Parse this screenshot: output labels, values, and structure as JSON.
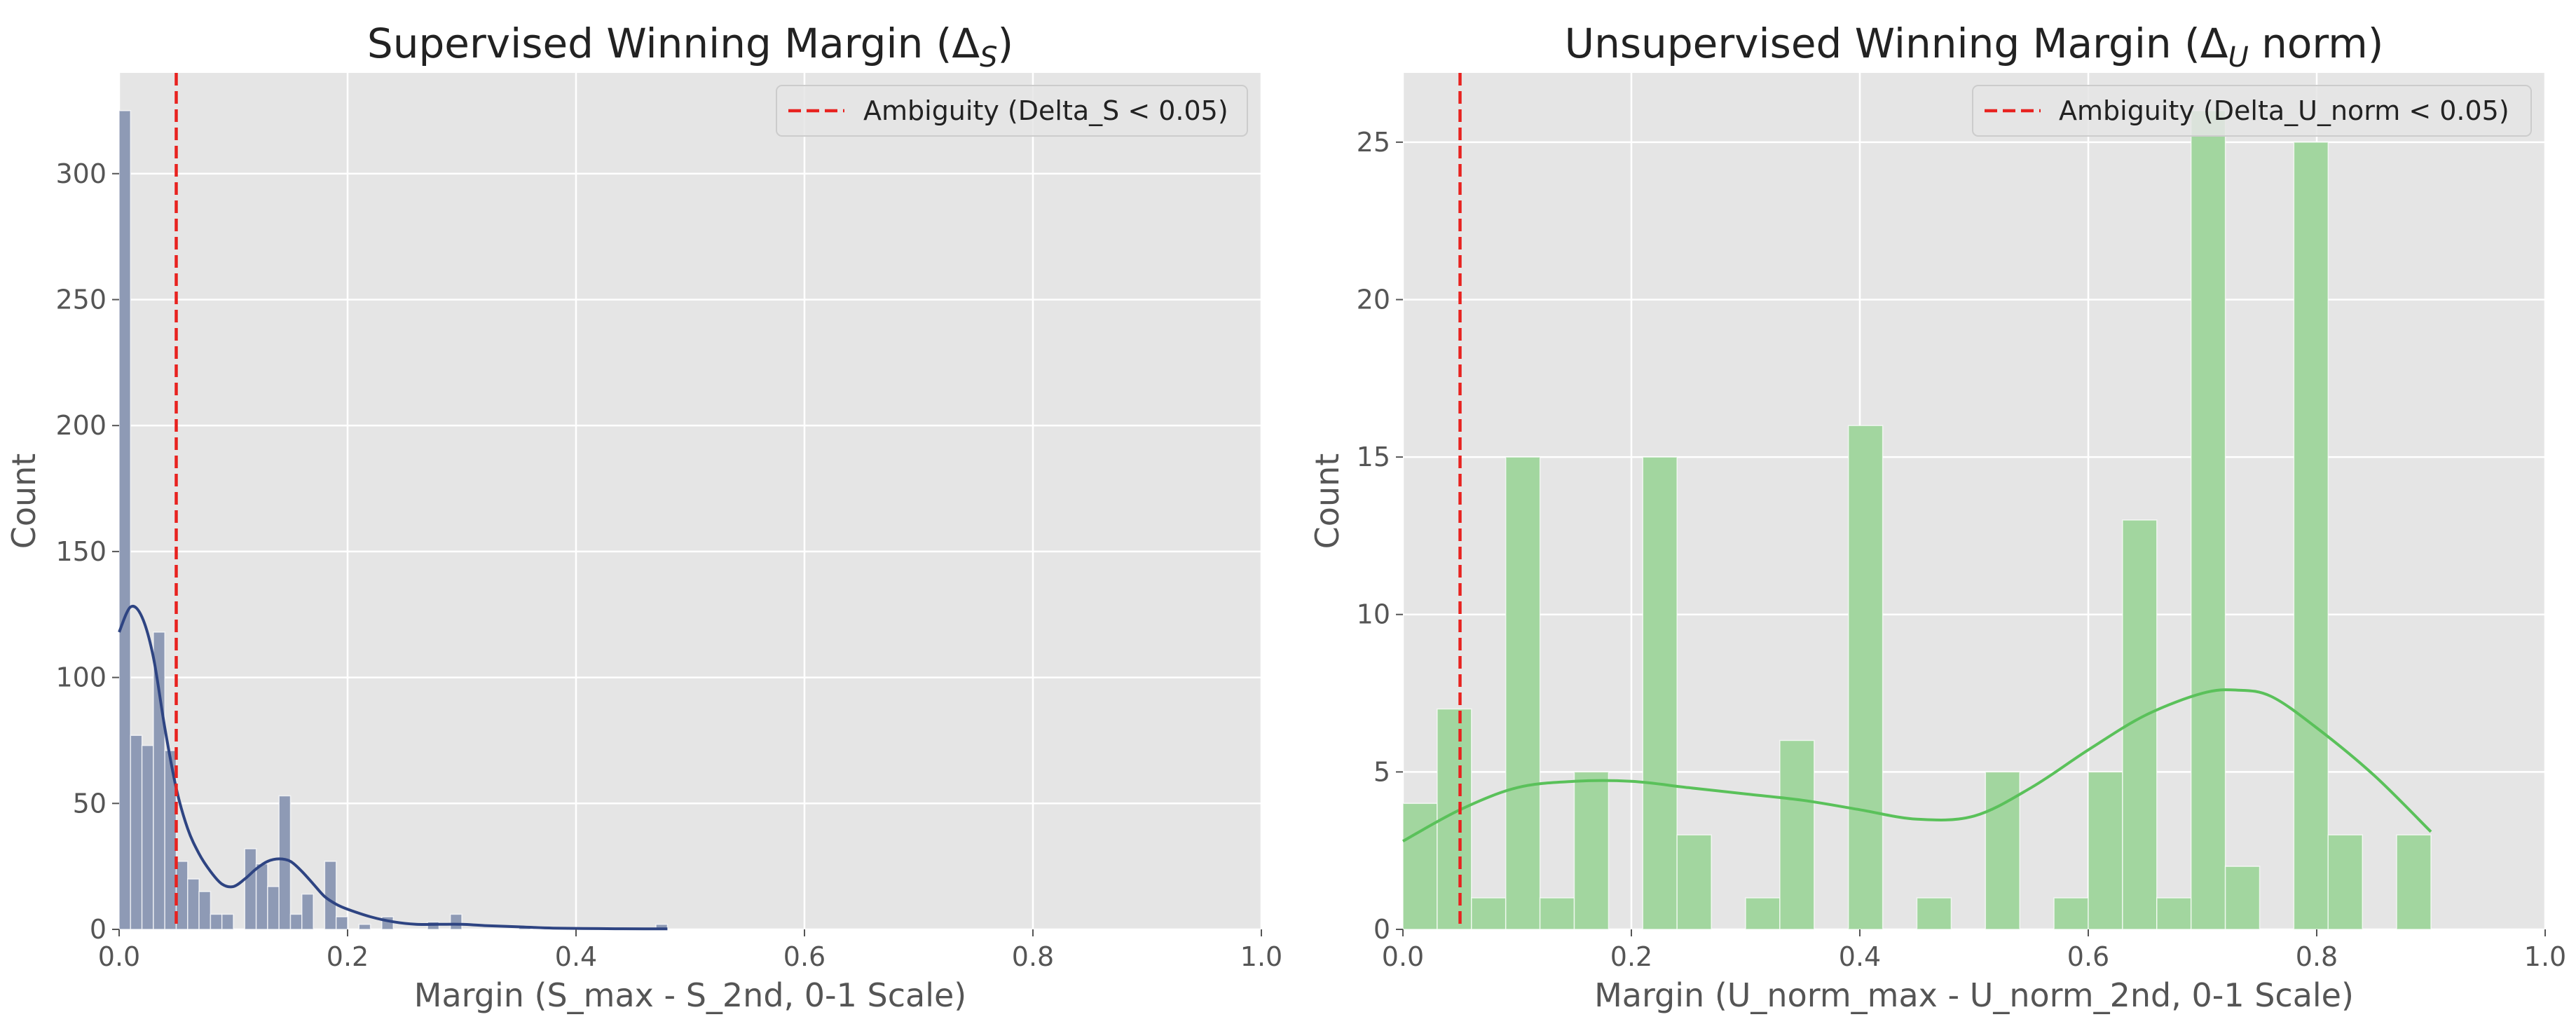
{
  "chart_data": [
    {
      "type": "bar",
      "title": "Supervised Winning Margin (Δ",
      "title_sub": "S",
      "title_tail": ")",
      "xlabel": "Margin (S_max - S_2nd, 0-1 Scale)",
      "ylabel": "Count",
      "xlim": [
        0,
        1
      ],
      "ylim": [
        0,
        340
      ],
      "xticks": [
        0,
        0.2,
        0.4,
        0.6,
        0.8,
        1
      ],
      "xtick_labels": [
        "0.0",
        "0.2",
        "0.4",
        "0.6",
        "0.8",
        "1.0"
      ],
      "yticks": [
        0,
        50,
        100,
        150,
        200,
        250,
        300
      ],
      "ytick_labels": [
        "0",
        "50",
        "100",
        "150",
        "200",
        "250",
        "300"
      ],
      "bar_color": "#8e9ab5",
      "kde_color": "#2e4482",
      "bin_width": 0.01,
      "bins": [
        {
          "x": 0.0,
          "count": 325
        },
        {
          "x": 0.01,
          "count": 77
        },
        {
          "x": 0.02,
          "count": 73
        },
        {
          "x": 0.03,
          "count": 118
        },
        {
          "x": 0.04,
          "count": 71
        },
        {
          "x": 0.05,
          "count": 27
        },
        {
          "x": 0.06,
          "count": 20
        },
        {
          "x": 0.07,
          "count": 15
        },
        {
          "x": 0.08,
          "count": 6
        },
        {
          "x": 0.09,
          "count": 6
        },
        {
          "x": 0.11,
          "count": 32
        },
        {
          "x": 0.12,
          "count": 26
        },
        {
          "x": 0.13,
          "count": 17
        },
        {
          "x": 0.14,
          "count": 53
        },
        {
          "x": 0.15,
          "count": 6
        },
        {
          "x": 0.16,
          "count": 14
        },
        {
          "x": 0.18,
          "count": 27
        },
        {
          "x": 0.19,
          "count": 5
        },
        {
          "x": 0.21,
          "count": 2
        },
        {
          "x": 0.23,
          "count": 5
        },
        {
          "x": 0.27,
          "count": 3
        },
        {
          "x": 0.29,
          "count": 6
        },
        {
          "x": 0.35,
          "count": 1
        },
        {
          "x": 0.47,
          "count": 2
        }
      ],
      "kde": {
        "x": [
          0,
          0.01,
          0.02,
          0.03,
          0.04,
          0.05,
          0.06,
          0.07,
          0.08,
          0.09,
          0.1,
          0.11,
          0.12,
          0.13,
          0.14,
          0.15,
          0.16,
          0.17,
          0.18,
          0.19,
          0.2,
          0.22,
          0.24,
          0.26,
          0.28,
          0.3,
          0.32,
          0.35,
          0.38,
          0.42,
          0.46,
          0.48
        ],
        "y": [
          118,
          128,
          124,
          108,
          80,
          56,
          40,
          30,
          23,
          18,
          17,
          20,
          24,
          27,
          28,
          27,
          23,
          18,
          13,
          10,
          8,
          5,
          3,
          2,
          2,
          2,
          1.5,
          1,
          0.5,
          0.3,
          0.2,
          0.2
        ]
      },
      "threshold": 0.05,
      "threshold_color": "#e8221f",
      "legend": {
        "label": "Ambiguity (Delta_S < 0.05)",
        "position": "upper right"
      },
      "grid": true
    },
    {
      "type": "bar",
      "title": "Unsupervised Winning Margin (Δ",
      "title_sub": "U",
      "title_tail": " norm)",
      "xlabel": "Margin (U_norm_max - U_norm_2nd, 0-1 Scale)",
      "ylabel": "Count",
      "xlim": [
        0,
        1
      ],
      "ylim": [
        0,
        27.2
      ],
      "xticks": [
        0,
        0.2,
        0.4,
        0.6,
        0.8,
        1
      ],
      "xtick_labels": [
        "0.0",
        "0.2",
        "0.4",
        "0.6",
        "0.8",
        "1.0"
      ],
      "yticks": [
        0,
        5,
        10,
        15,
        20,
        25
      ],
      "ytick_labels": [
        "0",
        "5",
        "10",
        "15",
        "20",
        "25"
      ],
      "bar_color": "#a2d69f",
      "kde_color": "#5ac15a",
      "bin_width": 0.03,
      "bins": [
        {
          "x": 0.0,
          "count": 4
        },
        {
          "x": 0.03,
          "count": 7
        },
        {
          "x": 0.06,
          "count": 1
        },
        {
          "x": 0.09,
          "count": 15
        },
        {
          "x": 0.12,
          "count": 1
        },
        {
          "x": 0.15,
          "count": 5
        },
        {
          "x": 0.21,
          "count": 15
        },
        {
          "x": 0.24,
          "count": 3
        },
        {
          "x": 0.3,
          "count": 1
        },
        {
          "x": 0.33,
          "count": 6
        },
        {
          "x": 0.39,
          "count": 16
        },
        {
          "x": 0.45,
          "count": 1
        },
        {
          "x": 0.51,
          "count": 5
        },
        {
          "x": 0.57,
          "count": 1
        },
        {
          "x": 0.6,
          "count": 5
        },
        {
          "x": 0.63,
          "count": 13
        },
        {
          "x": 0.66,
          "count": 1
        },
        {
          "x": 0.69,
          "count": 26
        },
        {
          "x": 0.72,
          "count": 2
        },
        {
          "x": 0.78,
          "count": 25
        },
        {
          "x": 0.81,
          "count": 3
        },
        {
          "x": 0.87,
          "count": 3
        }
      ],
      "kde": {
        "x": [
          0,
          0.05,
          0.1,
          0.15,
          0.2,
          0.25,
          0.3,
          0.35,
          0.4,
          0.45,
          0.5,
          0.55,
          0.6,
          0.65,
          0.7,
          0.73,
          0.76,
          0.8,
          0.85,
          0.9
        ],
        "y": [
          2.8,
          3.8,
          4.5,
          4.7,
          4.7,
          4.5,
          4.3,
          4.1,
          3.8,
          3.5,
          3.6,
          4.5,
          5.7,
          6.8,
          7.5,
          7.6,
          7.4,
          6.4,
          4.9,
          3.1
        ]
      },
      "threshold": 0.05,
      "threshold_color": "#e8221f",
      "legend": {
        "label": "Ambiguity (Delta_U_norm < 0.05)",
        "position": "upper right"
      },
      "grid": true
    }
  ]
}
